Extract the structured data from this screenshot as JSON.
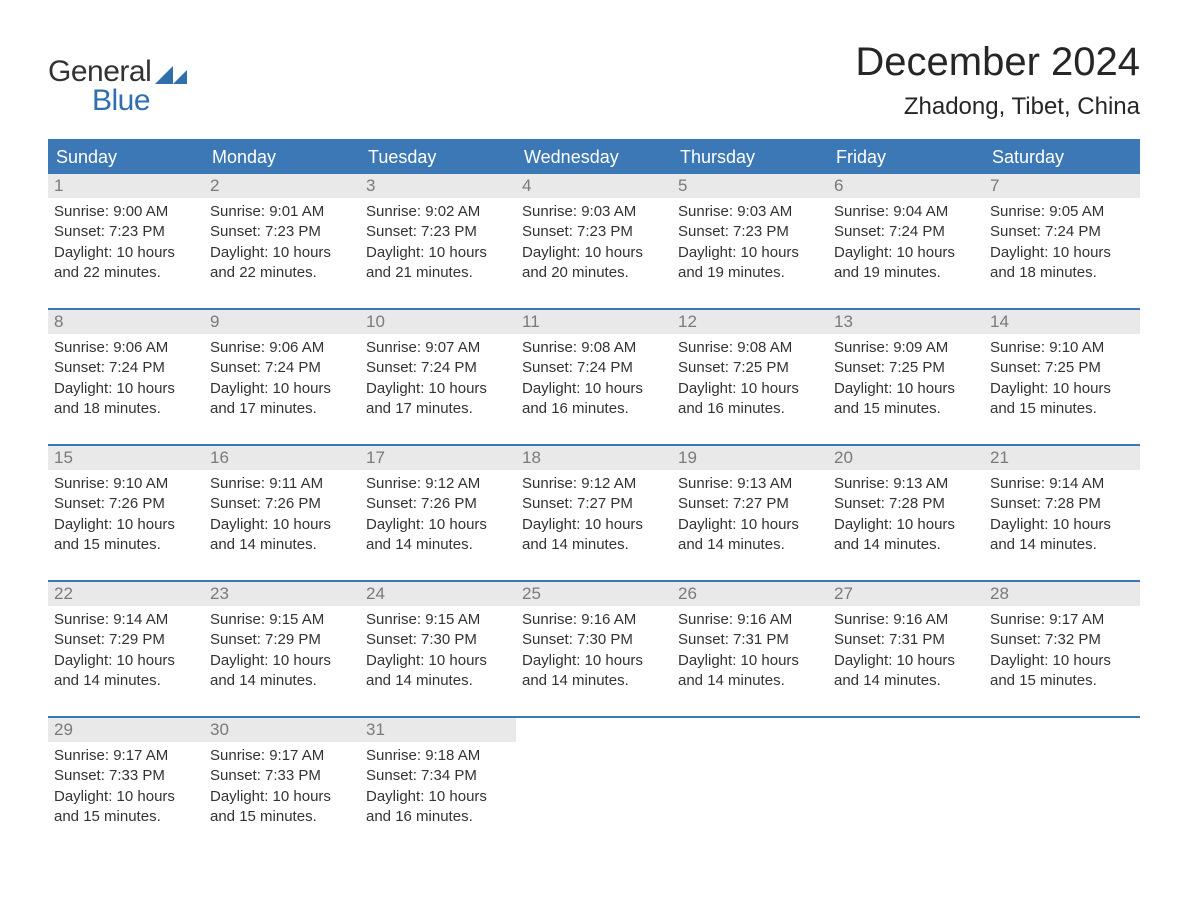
{
  "logo": {
    "general": "General",
    "blue": "Blue",
    "icon_color": "#2f6fae"
  },
  "title": "December 2024",
  "location": "Zhadong, Tibet, China",
  "colors": {
    "header_bg": "#3b78b5",
    "header_text": "#ffffff",
    "row_border": "#3b78b5",
    "daynum_bg": "#e9e9e9",
    "daynum_text": "#7a7a7a",
    "body_text": "#333333",
    "page_bg": "#ffffff"
  },
  "weekdays": [
    "Sunday",
    "Monday",
    "Tuesday",
    "Wednesday",
    "Thursday",
    "Friday",
    "Saturday"
  ],
  "weeks": [
    [
      {
        "day": "1",
        "sunrise": "Sunrise: 9:00 AM",
        "sunset": "Sunset: 7:23 PM",
        "daylight1": "Daylight: 10 hours",
        "daylight2": "and 22 minutes."
      },
      {
        "day": "2",
        "sunrise": "Sunrise: 9:01 AM",
        "sunset": "Sunset: 7:23 PM",
        "daylight1": "Daylight: 10 hours",
        "daylight2": "and 22 minutes."
      },
      {
        "day": "3",
        "sunrise": "Sunrise: 9:02 AM",
        "sunset": "Sunset: 7:23 PM",
        "daylight1": "Daylight: 10 hours",
        "daylight2": "and 21 minutes."
      },
      {
        "day": "4",
        "sunrise": "Sunrise: 9:03 AM",
        "sunset": "Sunset: 7:23 PM",
        "daylight1": "Daylight: 10 hours",
        "daylight2": "and 20 minutes."
      },
      {
        "day": "5",
        "sunrise": "Sunrise: 9:03 AM",
        "sunset": "Sunset: 7:23 PM",
        "daylight1": "Daylight: 10 hours",
        "daylight2": "and 19 minutes."
      },
      {
        "day": "6",
        "sunrise": "Sunrise: 9:04 AM",
        "sunset": "Sunset: 7:24 PM",
        "daylight1": "Daylight: 10 hours",
        "daylight2": "and 19 minutes."
      },
      {
        "day": "7",
        "sunrise": "Sunrise: 9:05 AM",
        "sunset": "Sunset: 7:24 PM",
        "daylight1": "Daylight: 10 hours",
        "daylight2": "and 18 minutes."
      }
    ],
    [
      {
        "day": "8",
        "sunrise": "Sunrise: 9:06 AM",
        "sunset": "Sunset: 7:24 PM",
        "daylight1": "Daylight: 10 hours",
        "daylight2": "and 18 minutes."
      },
      {
        "day": "9",
        "sunrise": "Sunrise: 9:06 AM",
        "sunset": "Sunset: 7:24 PM",
        "daylight1": "Daylight: 10 hours",
        "daylight2": "and 17 minutes."
      },
      {
        "day": "10",
        "sunrise": "Sunrise: 9:07 AM",
        "sunset": "Sunset: 7:24 PM",
        "daylight1": "Daylight: 10 hours",
        "daylight2": "and 17 minutes."
      },
      {
        "day": "11",
        "sunrise": "Sunrise: 9:08 AM",
        "sunset": "Sunset: 7:24 PM",
        "daylight1": "Daylight: 10 hours",
        "daylight2": "and 16 minutes."
      },
      {
        "day": "12",
        "sunrise": "Sunrise: 9:08 AM",
        "sunset": "Sunset: 7:25 PM",
        "daylight1": "Daylight: 10 hours",
        "daylight2": "and 16 minutes."
      },
      {
        "day": "13",
        "sunrise": "Sunrise: 9:09 AM",
        "sunset": "Sunset: 7:25 PM",
        "daylight1": "Daylight: 10 hours",
        "daylight2": "and 15 minutes."
      },
      {
        "day": "14",
        "sunrise": "Sunrise: 9:10 AM",
        "sunset": "Sunset: 7:25 PM",
        "daylight1": "Daylight: 10 hours",
        "daylight2": "and 15 minutes."
      }
    ],
    [
      {
        "day": "15",
        "sunrise": "Sunrise: 9:10 AM",
        "sunset": "Sunset: 7:26 PM",
        "daylight1": "Daylight: 10 hours",
        "daylight2": "and 15 minutes."
      },
      {
        "day": "16",
        "sunrise": "Sunrise: 9:11 AM",
        "sunset": "Sunset: 7:26 PM",
        "daylight1": "Daylight: 10 hours",
        "daylight2": "and 14 minutes."
      },
      {
        "day": "17",
        "sunrise": "Sunrise: 9:12 AM",
        "sunset": "Sunset: 7:26 PM",
        "daylight1": "Daylight: 10 hours",
        "daylight2": "and 14 minutes."
      },
      {
        "day": "18",
        "sunrise": "Sunrise: 9:12 AM",
        "sunset": "Sunset: 7:27 PM",
        "daylight1": "Daylight: 10 hours",
        "daylight2": "and 14 minutes."
      },
      {
        "day": "19",
        "sunrise": "Sunrise: 9:13 AM",
        "sunset": "Sunset: 7:27 PM",
        "daylight1": "Daylight: 10 hours",
        "daylight2": "and 14 minutes."
      },
      {
        "day": "20",
        "sunrise": "Sunrise: 9:13 AM",
        "sunset": "Sunset: 7:28 PM",
        "daylight1": "Daylight: 10 hours",
        "daylight2": "and 14 minutes."
      },
      {
        "day": "21",
        "sunrise": "Sunrise: 9:14 AM",
        "sunset": "Sunset: 7:28 PM",
        "daylight1": "Daylight: 10 hours",
        "daylight2": "and 14 minutes."
      }
    ],
    [
      {
        "day": "22",
        "sunrise": "Sunrise: 9:14 AM",
        "sunset": "Sunset: 7:29 PM",
        "daylight1": "Daylight: 10 hours",
        "daylight2": "and 14 minutes."
      },
      {
        "day": "23",
        "sunrise": "Sunrise: 9:15 AM",
        "sunset": "Sunset: 7:29 PM",
        "daylight1": "Daylight: 10 hours",
        "daylight2": "and 14 minutes."
      },
      {
        "day": "24",
        "sunrise": "Sunrise: 9:15 AM",
        "sunset": "Sunset: 7:30 PM",
        "daylight1": "Daylight: 10 hours",
        "daylight2": "and 14 minutes."
      },
      {
        "day": "25",
        "sunrise": "Sunrise: 9:16 AM",
        "sunset": "Sunset: 7:30 PM",
        "daylight1": "Daylight: 10 hours",
        "daylight2": "and 14 minutes."
      },
      {
        "day": "26",
        "sunrise": "Sunrise: 9:16 AM",
        "sunset": "Sunset: 7:31 PM",
        "daylight1": "Daylight: 10 hours",
        "daylight2": "and 14 minutes."
      },
      {
        "day": "27",
        "sunrise": "Sunrise: 9:16 AM",
        "sunset": "Sunset: 7:31 PM",
        "daylight1": "Daylight: 10 hours",
        "daylight2": "and 14 minutes."
      },
      {
        "day": "28",
        "sunrise": "Sunrise: 9:17 AM",
        "sunset": "Sunset: 7:32 PM",
        "daylight1": "Daylight: 10 hours",
        "daylight2": "and 15 minutes."
      }
    ],
    [
      {
        "day": "29",
        "sunrise": "Sunrise: 9:17 AM",
        "sunset": "Sunset: 7:33 PM",
        "daylight1": "Daylight: 10 hours",
        "daylight2": "and 15 minutes."
      },
      {
        "day": "30",
        "sunrise": "Sunrise: 9:17 AM",
        "sunset": "Sunset: 7:33 PM",
        "daylight1": "Daylight: 10 hours",
        "daylight2": "and 15 minutes."
      },
      {
        "day": "31",
        "sunrise": "Sunrise: 9:18 AM",
        "sunset": "Sunset: 7:34 PM",
        "daylight1": "Daylight: 10 hours",
        "daylight2": "and 16 minutes."
      },
      {
        "empty": true
      },
      {
        "empty": true
      },
      {
        "empty": true
      },
      {
        "empty": true
      }
    ]
  ]
}
